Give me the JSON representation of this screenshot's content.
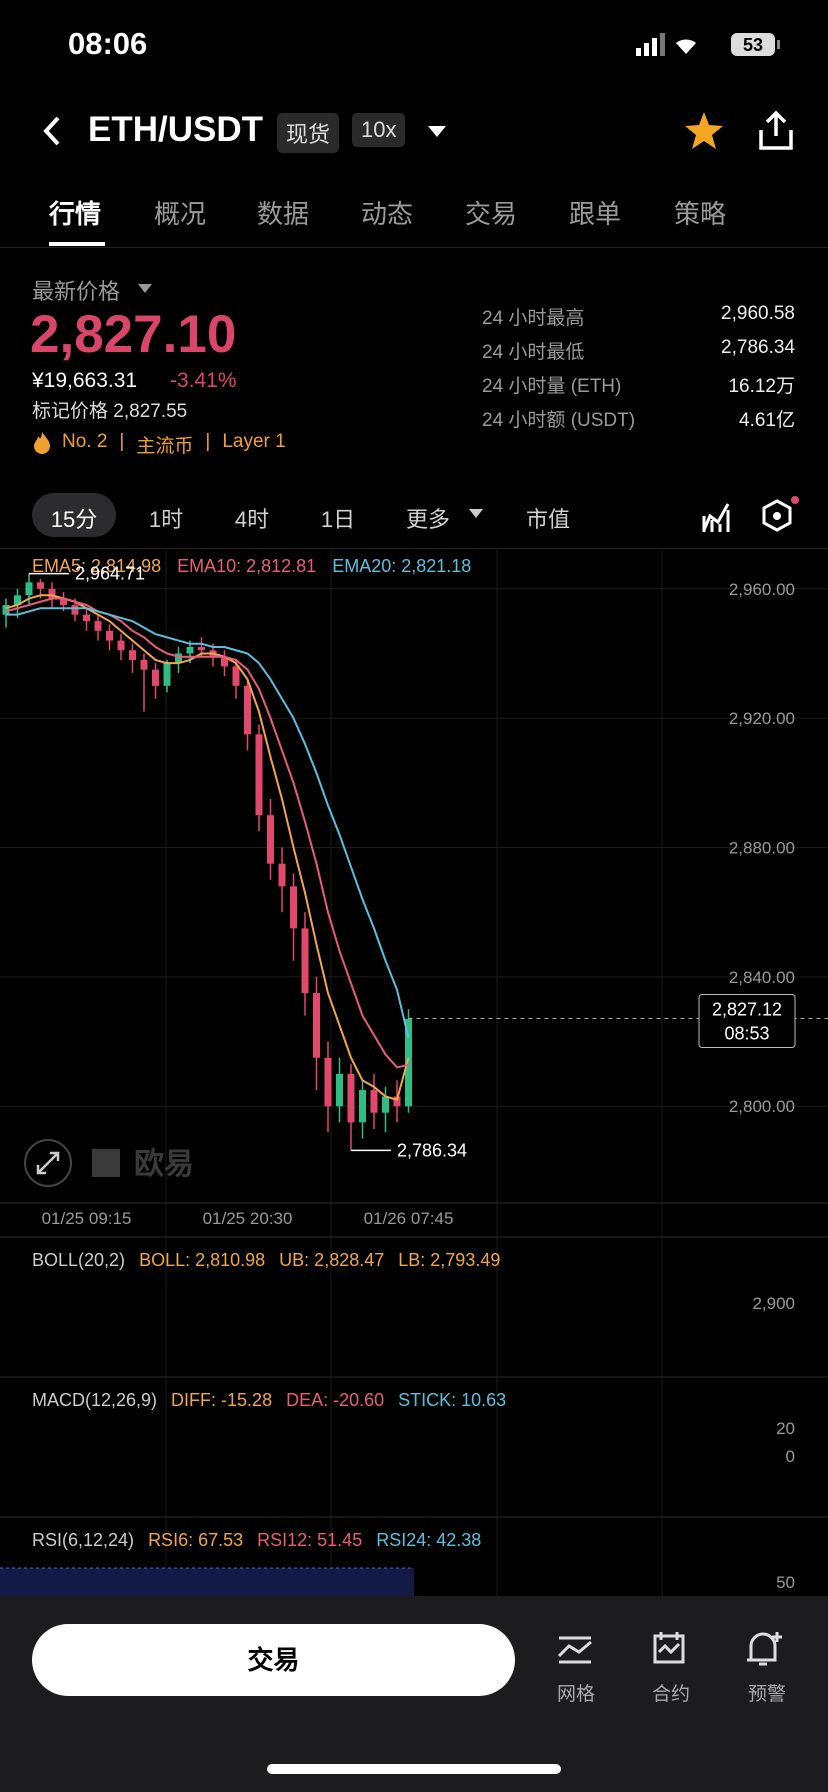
{
  "status_bar": {
    "time": "08:06",
    "battery": "53"
  },
  "header": {
    "pair": "ETH/USDT",
    "market": "现货",
    "leverage": "10x"
  },
  "tabs": [
    "行情",
    "概况",
    "数据",
    "动态",
    "交易",
    "跟单",
    "策略"
  ],
  "price_panel": {
    "label": "最新价格",
    "price": "2,827.10",
    "cny": "¥19,663.31",
    "change": "-3.41%",
    "mark_price": "标记价格 2,827.55",
    "tags": [
      "No. 2",
      "|",
      "主流币",
      "|",
      "Layer 1"
    ]
  },
  "stats": [
    [
      "24 小时最高",
      "2,960.58"
    ],
    [
      "24 小时最低",
      "2,786.34"
    ],
    [
      "24 小时量 (ETH)",
      "16.12万"
    ],
    [
      "24 小时额 (USDT)",
      "4.61亿"
    ]
  ],
  "intervals": [
    "15分",
    "1时",
    "4时",
    "1日",
    "更多",
    "市值"
  ],
  "chart_data": {
    "type": "candlestick",
    "categories": [
      null,
      null,
      null,
      null,
      null,
      null,
      null,
      "01/25 09:15",
      null,
      null,
      null,
      null,
      null,
      null,
      null,
      null,
      null,
      null,
      null,
      null,
      null,
      "01/25 20:30",
      null,
      null,
      null,
      null,
      null,
      null,
      null,
      null,
      null,
      null,
      null,
      null,
      null,
      "01/26 07:45"
    ],
    "open": [
      2952,
      2955,
      2958,
      2962,
      2960,
      2957,
      2955,
      2952,
      2950,
      2947,
      2944,
      2941,
      2938,
      2935,
      2930,
      2937,
      2940,
      2942,
      2941,
      2939,
      2936,
      2930,
      2915,
      2890,
      2875,
      2868,
      2855,
      2835,
      2815,
      2800,
      2810,
      2795,
      2805,
      2798,
      2803,
      2800
    ],
    "high": [
      2957,
      2960,
      2964.71,
      2963,
      2962,
      2959,
      2957,
      2954,
      2952,
      2949,
      2946,
      2943,
      2940,
      2937,
      2938,
      2942,
      2944,
      2945,
      2943,
      2941,
      2938,
      2932,
      2918,
      2895,
      2880,
      2872,
      2860,
      2840,
      2820,
      2815,
      2813,
      2808,
      2810,
      2806,
      2808,
      2830
    ],
    "low": [
      2948,
      2951,
      2955,
      2957,
      2954,
      2953,
      2950,
      2947,
      2944,
      2941,
      2938,
      2934,
      2922,
      2926,
      2928,
      2934,
      2937,
      2939,
      2936,
      2933,
      2926,
      2910,
      2885,
      2870,
      2860,
      2845,
      2828,
      2805,
      2792,
      2795,
      2786.34,
      2790,
      2793,
      2792,
      2795,
      2798
    ],
    "close": [
      2955,
      2958,
      2962,
      2960,
      2957,
      2955,
      2952,
      2950,
      2947,
      2944,
      2941,
      2938,
      2935,
      2930,
      2937,
      2940,
      2942,
      2941,
      2939,
      2936,
      2930,
      2915,
      2890,
      2875,
      2868,
      2855,
      2835,
      2815,
      2800,
      2810,
      2795,
      2805,
      2798,
      2803,
      2800,
      2827
    ],
    "up_color": "#2ebd85",
    "down_color": "#e0496b",
    "series": [
      {
        "name": "EMA5: 2,814.98",
        "color": "#f0a64a",
        "values": [
          2954,
          2955,
          2957,
          2958,
          2958,
          2957,
          2956,
          2954,
          2952,
          2950,
          2947,
          2944,
          2941,
          2938,
          2937,
          2937,
          2938,
          2940,
          2940,
          2939,
          2937,
          2932,
          2922,
          2908,
          2895,
          2880,
          2866,
          2850,
          2835,
          2825,
          2815,
          2808,
          2806,
          2803,
          2802,
          2814.98
        ]
      },
      {
        "name": "EMA10: 2,812.81",
        "color": "#e85d7a",
        "values": [
          2953,
          2954,
          2955,
          2956,
          2957,
          2957,
          2956,
          2955,
          2953,
          2952,
          2950,
          2947,
          2945,
          2942,
          2940,
          2939,
          2939,
          2939,
          2939,
          2939,
          2938,
          2935,
          2929,
          2920,
          2910,
          2900,
          2888,
          2875,
          2860,
          2848,
          2838,
          2828,
          2822,
          2816,
          2812,
          2812.81
        ]
      },
      {
        "name": "EMA20: 2,821.18",
        "color": "#5bc0de",
        "values": [
          2952,
          2952,
          2953,
          2954,
          2954,
          2954,
          2954,
          2954,
          2953,
          2952,
          2951,
          2950,
          2948,
          2946,
          2945,
          2944,
          2943,
          2943,
          2942,
          2942,
          2941,
          2940,
          2937,
          2932,
          2926,
          2920,
          2912,
          2903,
          2893,
          2884,
          2874,
          2864,
          2855,
          2845,
          2836,
          2821.18
        ]
      }
    ],
    "ylim": [
      2771,
      2972
    ],
    "yticks": [
      {
        "value": 2800,
        "label": "2,800.00"
      },
      {
        "value": 2840,
        "label": "2,840.00"
      },
      {
        "value": 2880,
        "label": "2,880.00"
      },
      {
        "value": 2920,
        "label": "2,920.00"
      },
      {
        "value": 2960,
        "label": "2,960.00"
      }
    ],
    "grid": true,
    "last_price": {
      "value": 2827.12,
      "label": "2,827.12",
      "time": "08:53"
    },
    "annotations": [
      {
        "index": 2,
        "value": 2964.71,
        "label": "2,964.71"
      },
      {
        "index": 30,
        "value": 2786.34,
        "label": "2,786.34"
      }
    ]
  },
  "indicators": {
    "boll": {
      "title": "BOLL(20,2)",
      "parts": [
        "BOLL: 2,810.98",
        "UB: 2,828.47",
        "LB: 2,793.49"
      ],
      "axis": [
        "2,900"
      ]
    },
    "macd": {
      "title": "MACD(12,26,9)",
      "parts": [
        "DIFF: -15.28",
        "DEA: -20.60",
        "STICK: 10.63"
      ],
      "axis": [
        "20",
        "0"
      ]
    },
    "rsi": {
      "title": "RSI(6,12,24)",
      "parts": [
        "RSI6: 67.53",
        "RSI12: 51.45",
        "RSI24: 42.38"
      ],
      "axis": [
        "50"
      ]
    }
  },
  "watermark": "欧易",
  "bottom_bar": {
    "trade": "交易",
    "items": [
      "网格",
      "合约",
      "预警"
    ]
  }
}
